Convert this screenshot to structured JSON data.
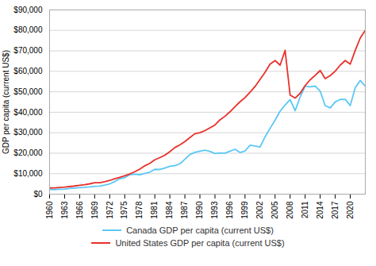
{
  "chart_data": {
    "type": "line",
    "x": [
      1960,
      1961,
      1962,
      1963,
      1964,
      1965,
      1966,
      1967,
      1968,
      1969,
      1970,
      1971,
      1972,
      1973,
      1974,
      1975,
      1976,
      1977,
      1978,
      1979,
      1980,
      1981,
      1982,
      1983,
      1984,
      1985,
      1986,
      1987,
      1988,
      1989,
      1990,
      1991,
      1992,
      1993,
      1994,
      1995,
      1996,
      1997,
      1998,
      1999,
      2000,
      2001,
      2002,
      2003,
      2004,
      2005,
      2006,
      2007,
      2008,
      2009,
      2010,
      2011,
      2012,
      2013,
      2014,
      2015,
      2016,
      2017,
      2018,
      2019,
      2020,
      2021,
      2022,
      2023
    ],
    "series": [
      {
        "name": "Canada GDP per capita (current US$)",
        "color": "#5bc8f5",
        "values": [
          2294,
          2231,
          2350,
          2501,
          2724,
          2925,
          3177,
          3309,
          3509,
          3799,
          3957,
          4407,
          5021,
          6152,
          7536,
          8028,
          9502,
          9733,
          9503,
          10116,
          10746,
          12117,
          12034,
          12742,
          13622,
          13922,
          14847,
          17001,
          19358,
          20413,
          21029,
          21453,
          20907,
          19837,
          20137,
          20033,
          21006,
          21916,
          20347,
          21056,
          23921,
          23543,
          23011,
          27998,
          32149,
          36188,
          40551,
          43472,
          46212,
          40773,
          47447,
          52795,
          52409,
          52763,
          50271,
          43248,
          42158,
          45032,
          46261,
          46327,
          43242,
          52051,
          55522,
          52722
        ]
      },
      {
        "name": "United States GDP per capita (current US$)",
        "color": "#e8302a",
        "values": [
          3007,
          3067,
          3244,
          3432,
          3679,
          3975,
          4337,
          4615,
          5044,
          5555,
          5561,
          6059,
          6694,
          7480,
          8186,
          8944,
          9877,
          10948,
          12202,
          13831,
          15034,
          16796,
          17838,
          18987,
          20762,
          22741,
          24073,
          25688,
          27618,
          29528,
          30018,
          31019,
          32416,
          33758,
          36299,
          38061,
          40240,
          42736,
          45088,
          47195,
          49832,
          52591,
          56042,
          59531,
          63544,
          65280,
          63028,
          70248,
          48387,
          46915,
          49267,
          53042,
          55860,
          58020,
          60420,
          56469,
          57900,
          60110,
          63052,
          65254,
          63547,
          70249,
          76330,
          80034
        ]
      }
    ],
    "y_label": "GDP per capita (current US$)",
    "xlim": [
      1960,
      2023
    ],
    "xticks": [
      1960,
      1963,
      1966,
      1969,
      1972,
      1975,
      1978,
      1981,
      1984,
      1987,
      1990,
      1993,
      1996,
      1999,
      2002,
      2005,
      2008,
      2011,
      2014,
      2017,
      2020
    ],
    "ylim": [
      0,
      90000
    ],
    "yticks": [
      {
        "value": 0,
        "label": "$0"
      },
      {
        "value": 10000,
        "label": "$10,000"
      },
      {
        "value": 20000,
        "label": "$20,000"
      },
      {
        "value": 30000,
        "label": "$30,000"
      },
      {
        "value": 40000,
        "label": "$40,000"
      },
      {
        "value": 50000,
        "label": "$50,000"
      },
      {
        "value": 60000,
        "label": "$60,000"
      },
      {
        "value": 70000,
        "label": "$70,000"
      },
      {
        "value": 80000,
        "label": "$80,000"
      },
      {
        "value": 90000,
        "label": "$90,000"
      }
    ],
    "grid": true,
    "legend": "bottom"
  }
}
